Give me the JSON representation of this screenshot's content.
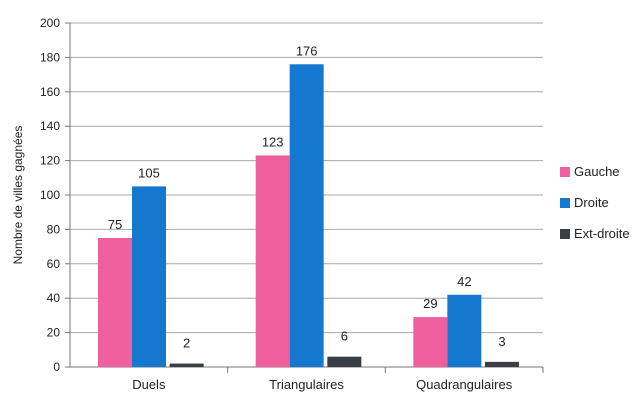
{
  "chart_data": {
    "type": "bar",
    "categories": [
      "Duels",
      "Triangulaires",
      "Quadrangulaires"
    ],
    "series": [
      {
        "name": "Gauche",
        "color": "#ef5f9e",
        "values": [
          75,
          123,
          29
        ]
      },
      {
        "name": "Droite",
        "color": "#1478cf",
        "values": [
          105,
          176,
          42
        ]
      },
      {
        "name": "Ext-droite",
        "color": "#3a3f45",
        "values": [
          2,
          6,
          3
        ]
      }
    ],
    "ylabel": "Nombre de villes gagnées",
    "ylim": [
      0,
      200
    ],
    "yticks": [
      0,
      20,
      40,
      60,
      80,
      100,
      120,
      140,
      160,
      180,
      200
    ],
    "grid": true,
    "legend_position": "right"
  }
}
